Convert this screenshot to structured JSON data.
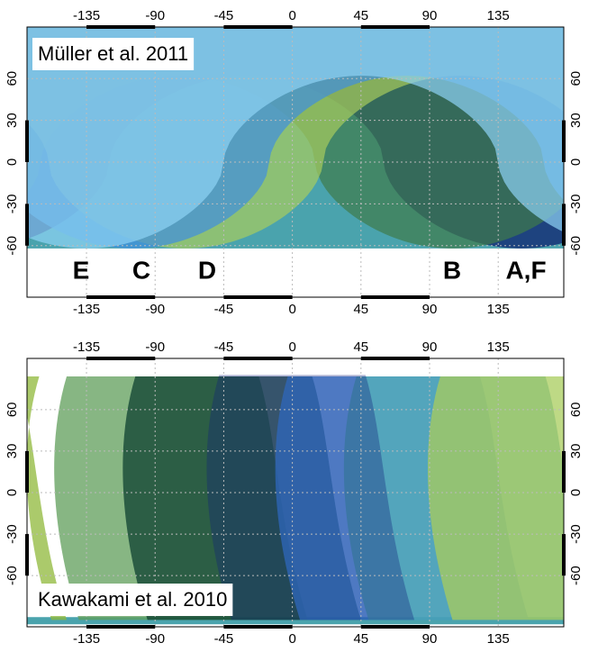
{
  "chart_data": [
    {
      "type": "region-map",
      "title": "Müller et al. 2011",
      "xlim": [
        -174,
        178
      ],
      "ylim": [
        -97,
        97
      ],
      "xticks": [
        -135,
        -90,
        -45,
        0,
        45,
        90,
        135
      ],
      "yticks": [
        -60,
        -30,
        0,
        30,
        60
      ],
      "grid": true,
      "labels": [
        {
          "text": "E",
          "color": "#8fd3f5"
        },
        {
          "text": "C",
          "color": "#3f7fd0"
        },
        {
          "text": "D",
          "color": "#a8cc5c"
        },
        {
          "text": "B",
          "color": "#6ba35c"
        },
        {
          "text": "A,F",
          "color": "#0b1a6b"
        }
      ]
    },
    {
      "type": "region-map",
      "title": "Kawakami et al. 2010",
      "xlim": [
        -174,
        178
      ],
      "ylim": [
        -97,
        97
      ],
      "xticks": [
        -135,
        -90,
        -45,
        0,
        45,
        90,
        135
      ],
      "yticks": [
        -60,
        -30,
        0,
        30,
        60
      ],
      "grid": true
    }
  ]
}
